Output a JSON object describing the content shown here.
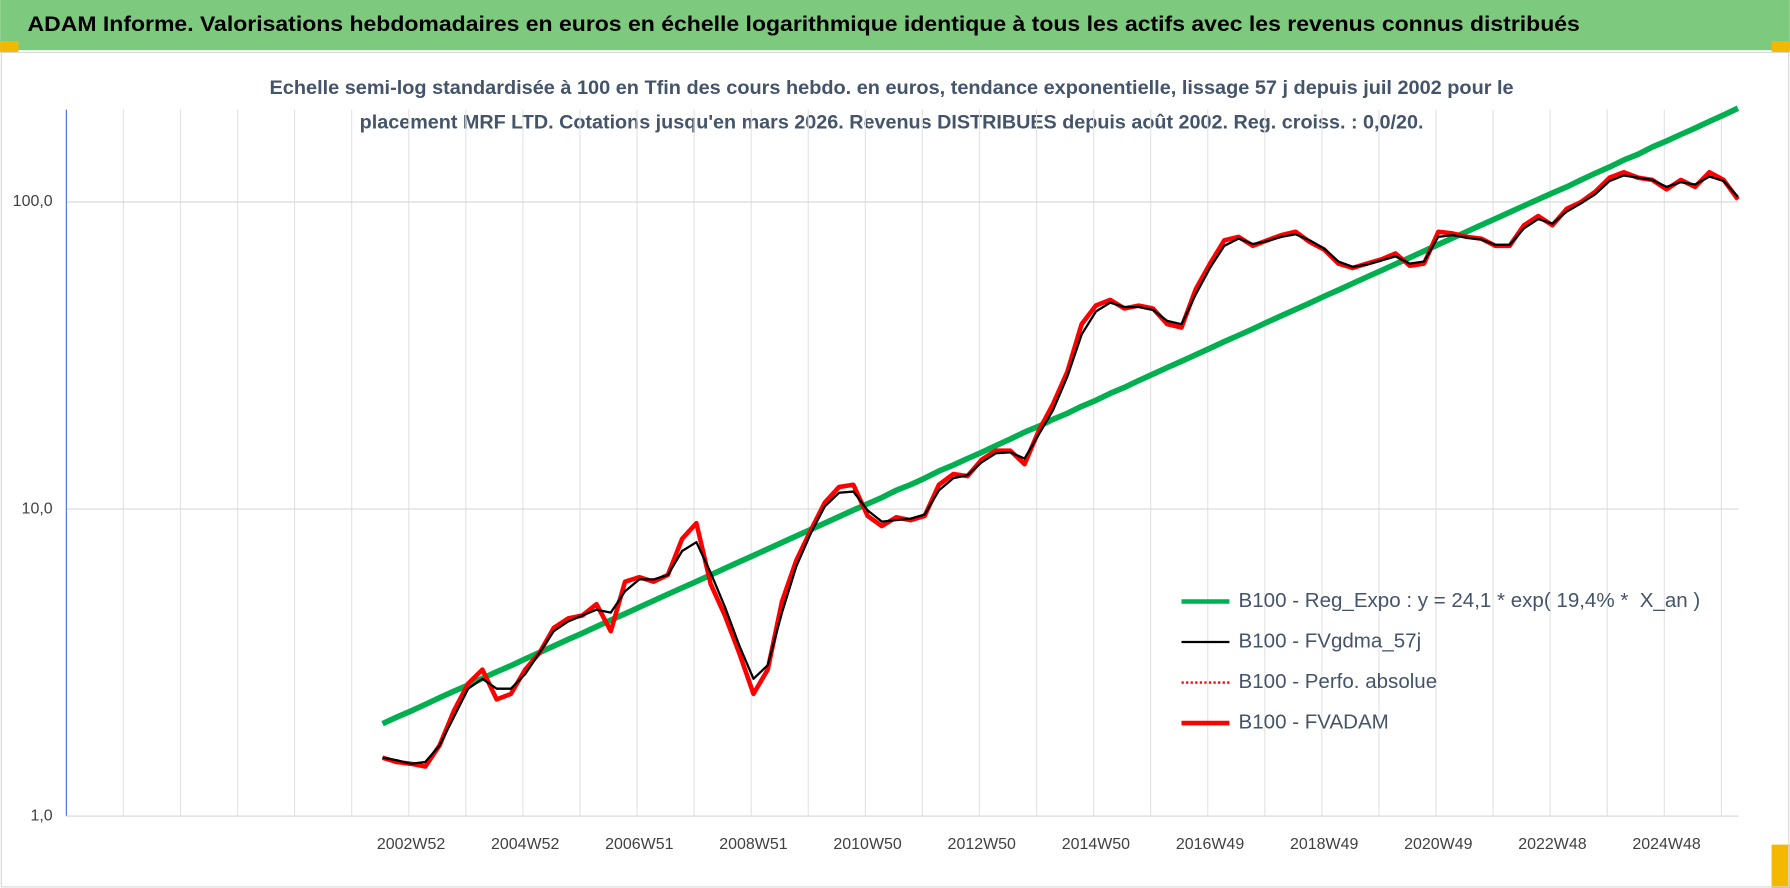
{
  "chart_data": {
    "type": "line",
    "title": "ADAM Informe. Valorisations hebdomadaires en euros en échelle logarithmique identique à tous les actifs avec les revenus connus distribués",
    "subtitle": [
      "Echelle semi-log standardisée à 100 en Tfin des cours hebdo. en euros, tendance exponentielle, lissage 57 j depuis juil 2002 pour le",
      "placement MRF LTD. Cotations jusqu'en mars 2026. Revenus DISTRIBUES depuis août 2002. Reg. croiss. : 0,0/20."
    ],
    "categories": [
      null,
      null,
      "2002W52",
      null,
      null,
      null,
      null,
      null,
      null,
      null,
      "2004W52",
      null,
      null,
      null,
      null,
      null,
      null,
      null,
      "2006W51",
      null,
      null,
      null,
      null,
      null,
      null,
      null,
      "2008W51",
      null,
      null,
      null,
      null,
      null,
      null,
      null,
      "2010W50",
      null,
      null,
      null,
      null,
      null,
      null,
      null,
      "2012W50",
      null,
      null,
      null,
      null,
      null,
      null,
      null,
      "2014W50",
      null,
      null,
      null,
      null,
      null,
      null,
      null,
      "2016W49",
      null,
      null,
      null,
      null,
      null,
      null,
      null,
      "2018W49",
      null,
      null,
      null,
      null,
      null,
      null,
      null,
      "2020W49",
      null,
      null,
      null,
      null,
      null,
      null,
      null,
      "2022W48",
      null,
      null,
      null,
      null,
      null,
      null,
      null,
      "2024W48",
      null,
      null,
      null,
      null,
      null
    ],
    "series": [
      {
        "name": "B100 - Reg_Expo : y = 24,1 * exp( 19,4% *  X_an )",
        "color": "#00b050",
        "style": "solid",
        "width": 5,
        "values": [
          2.0,
          2.1,
          2.2,
          2.31,
          2.43,
          2.55,
          2.67,
          2.81,
          2.95,
          3.09,
          3.25,
          3.41,
          3.58,
          3.76,
          3.94,
          4.14,
          4.35,
          4.56,
          4.79,
          5.03,
          5.28,
          5.54,
          5.81,
          6.1,
          6.41,
          6.73,
          7.06,
          7.41,
          7.78,
          8.17,
          8.57,
          9.0,
          9.45,
          9.92,
          10.4,
          10.9,
          11.5,
          12.0,
          12.6,
          13.3,
          13.9,
          14.6,
          15.3,
          16.1,
          16.9,
          17.8,
          18.6,
          19.6,
          20.5,
          21.6,
          22.6,
          23.8,
          24.9,
          26.2,
          27.5,
          28.9,
          30.3,
          31.8,
          33.4,
          35.1,
          36.8,
          38.6,
          40.6,
          42.6,
          44.7,
          46.9,
          49.3,
          51.7,
          54.3,
          57.0,
          59.8,
          62.8,
          65.9,
          69.2,
          72.7,
          76.3,
          80.1,
          84.1,
          88.2,
          92.6,
          97.2,
          102,
          107,
          112,
          118,
          124,
          130,
          137,
          143,
          151,
          158,
          166,
          174,
          183,
          192,
          202
        ]
      },
      {
        "name": "B100 - FVgdma_57j",
        "color": "#000000",
        "style": "solid",
        "width": 2,
        "values": [
          1.55,
          1.52,
          1.48,
          1.5,
          1.7,
          2.1,
          2.6,
          2.8,
          2.6,
          2.6,
          2.9,
          3.4,
          4.0,
          4.3,
          4.5,
          4.7,
          4.6,
          5.4,
          5.9,
          5.9,
          6.1,
          7.3,
          7.8,
          6.2,
          4.8,
          3.6,
          2.8,
          3.1,
          4.6,
          6.5,
          8.3,
          10.2,
          11.3,
          11.4,
          9.9,
          9.1,
          9.2,
          9.3,
          9.6,
          11.5,
          12.6,
          12.9,
          14.2,
          15.2,
          15.3,
          14.6,
          17.5,
          21,
          27,
          37,
          44,
          47,
          45.5,
          45.5,
          44.5,
          41,
          40,
          50,
          61,
          72,
          76,
          73,
          74.5,
          77,
          78.5,
          75,
          70.5,
          64,
          61.5,
          62.5,
          64.5,
          66.5,
          63,
          64,
          77,
          78,
          76.5,
          75.5,
          72.5,
          72.5,
          82,
          88,
          85,
          93,
          99,
          106,
          117,
          122,
          120,
          118,
          112,
          116,
          114,
          121,
          117,
          104
        ]
      },
      {
        "name": "B100 - Perfo. absolue",
        "color": "#ff0000",
        "style": "dotted",
        "width": 1.5,
        "values": [
          1.55,
          1.5,
          1.48,
          1.45,
          1.7,
          2.2,
          2.7,
          3.0,
          2.4,
          2.5,
          3.0,
          3.4,
          4.1,
          4.4,
          4.5,
          4.9,
          4.0,
          5.8,
          6.0,
          5.8,
          6.1,
          8.0,
          9.0,
          5.7,
          4.5,
          3.4,
          2.5,
          3.0,
          5.0,
          6.8,
          8.5,
          10.5,
          11.8,
          12.0,
          9.5,
          8.8,
          9.4,
          9.2,
          9.5,
          12.0,
          13.0,
          12.8,
          14.5,
          15.5,
          15.5,
          14.0,
          18,
          22,
          28,
          40,
          46,
          48,
          45,
          46,
          45,
          40,
          39,
          52,
          63,
          75,
          77,
          72,
          75,
          78,
          80,
          74,
          70,
          63,
          61,
          63,
          65,
          68,
          62,
          63,
          80,
          79,
          77,
          76,
          72,
          72,
          84,
          90,
          84,
          95,
          100,
          108,
          120,
          125,
          120,
          118,
          110,
          118,
          112,
          125,
          118,
          102
        ]
      },
      {
        "name": "B100 - FVADAM",
        "color": "#ff0000",
        "style": "solid",
        "width": 4,
        "values": [
          1.55,
          1.5,
          1.48,
          1.45,
          1.7,
          2.2,
          2.7,
          3.0,
          2.4,
          2.5,
          3.0,
          3.4,
          4.1,
          4.4,
          4.5,
          4.9,
          4.0,
          5.8,
          6.0,
          5.8,
          6.1,
          8.0,
          9.0,
          5.7,
          4.5,
          3.4,
          2.5,
          3.0,
          5.0,
          6.8,
          8.5,
          10.5,
          11.8,
          12.0,
          9.5,
          8.8,
          9.4,
          9.2,
          9.5,
          12.0,
          13.0,
          12.8,
          14.5,
          15.5,
          15.5,
          14.0,
          18,
          22,
          28,
          40,
          46,
          48,
          45,
          46,
          45,
          40,
          39,
          52,
          63,
          75,
          77,
          72,
          75,
          78,
          80,
          74,
          70,
          63,
          61,
          63,
          65,
          68,
          62,
          63,
          80,
          79,
          77,
          76,
          72,
          72,
          84,
          90,
          84,
          95,
          100,
          108,
          120,
          125,
          120,
          118,
          110,
          118,
          112,
          125,
          118,
          102
        ]
      }
    ],
    "ylim": [
      1,
      200
    ],
    "yticks": [
      {
        "value": 1,
        "label": "1,0"
      },
      {
        "value": 10,
        "label": "10,0"
      },
      {
        "value": 100,
        "label": "100,0"
      }
    ],
    "log_scale": true,
    "grid": true,
    "legend": "lower right"
  }
}
